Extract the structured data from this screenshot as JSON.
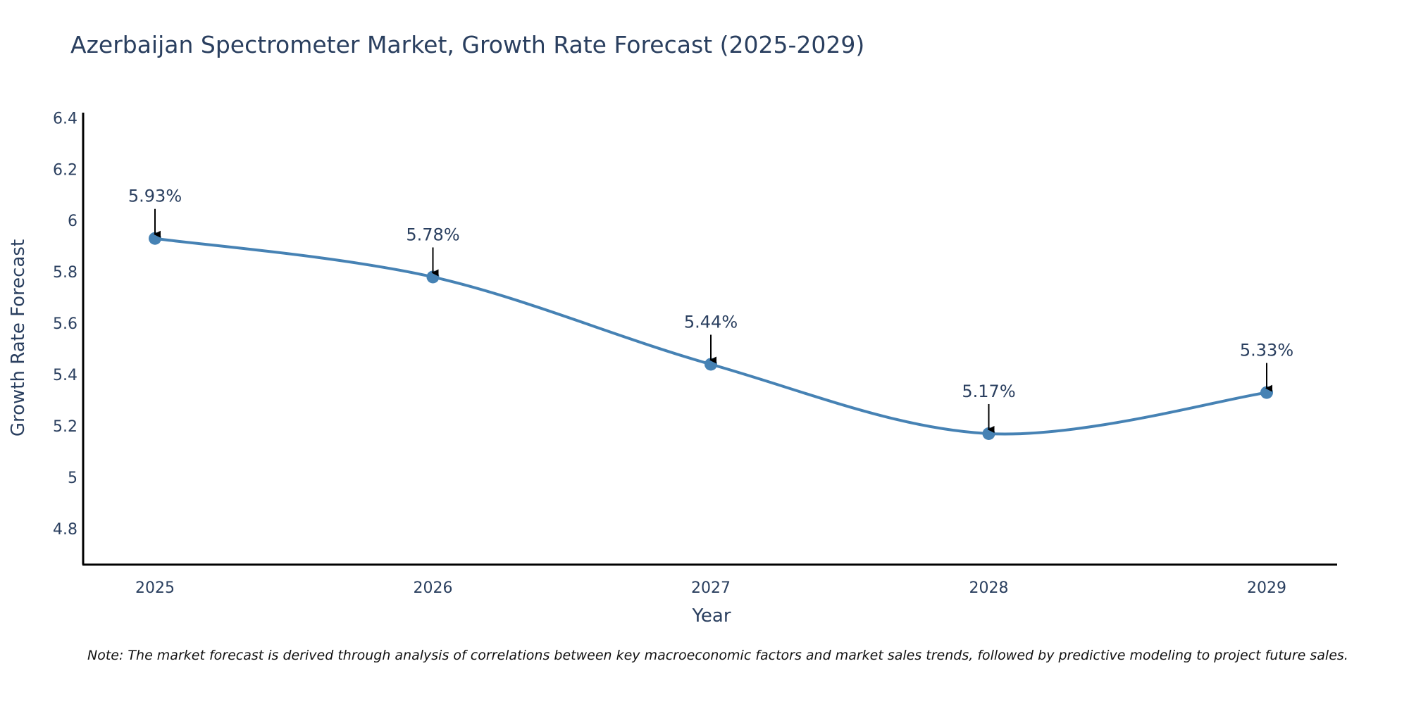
{
  "chart_data": {
    "type": "line",
    "title": "Azerbaijan Spectrometer Market, Growth Rate Forecast (2025-2029)",
    "xlabel": "Year",
    "ylabel": "Growth Rate Forecast",
    "categories": [
      "2025",
      "2026",
      "2027",
      "2028",
      "2029"
    ],
    "values": [
      5.93,
      5.78,
      5.44,
      5.17,
      5.33
    ],
    "data_labels": [
      "5.93%",
      "5.78%",
      "5.44%",
      "5.17%",
      "5.33%"
    ],
    "ylim": [
      4.66,
      6.42
    ],
    "yticks": [
      "4.8",
      "5",
      "5.2",
      "5.4",
      "5.6",
      "5.8",
      "6",
      "6.2",
      "6.4"
    ],
    "ytick_values": [
      4.8,
      5.0,
      5.2,
      5.4,
      5.6,
      5.8,
      6.0,
      6.2,
      6.4
    ],
    "line_color": "#4682b4",
    "marker_color": "#4682b4",
    "arrow_color": "#000000",
    "grid": false,
    "legend": "none",
    "footnote": "Note: The market forecast is derived through analysis of correlations between key macroeconomic factors and market sales trends, followed by predictive modeling to project future sales."
  }
}
